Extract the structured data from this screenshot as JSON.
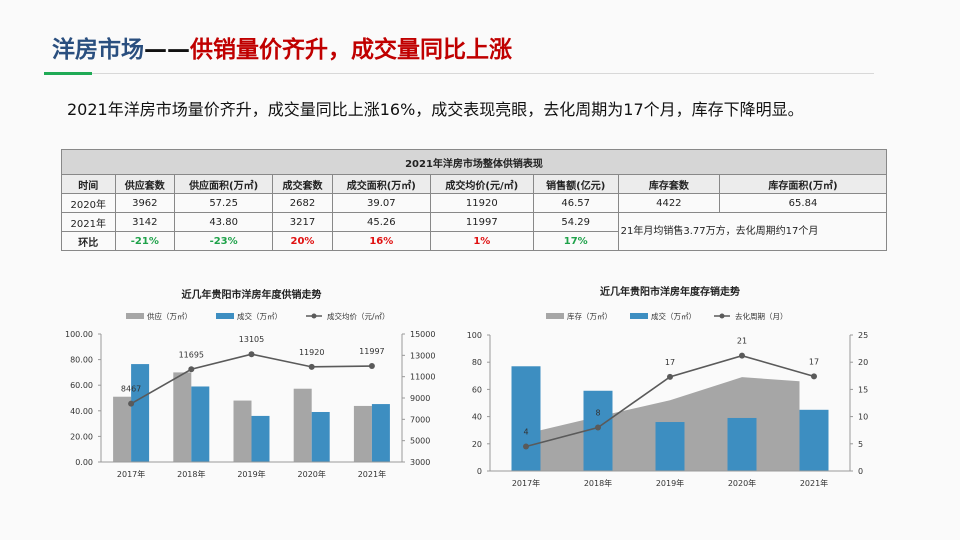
{
  "header": {
    "title_a": "洋房市场",
    "title_dash": "——",
    "title_b": "供销量价齐升，成交量同比上涨"
  },
  "summary": "2021年洋房市场量价齐升，成交量同比上涨16%，成交表现亮眼，去化周期为17个月，库存下降明显。",
  "table": {
    "caption": "2021年洋房市场整体供销表现",
    "headers": [
      "时间",
      "供应套数",
      "供应面积(万㎡)",
      "成交套数",
      "成交面积(万㎡)",
      "成交均价(元/㎡)",
      "销售额(亿元)",
      "库存套数",
      "库存面积(万㎡)"
    ],
    "rows": [
      [
        "2020年",
        "3962",
        "57.25",
        "2682",
        "39.07",
        "11920",
        "46.57",
        "4422",
        "65.84"
      ],
      [
        "2021年",
        "3142",
        "43.80",
        "3217",
        "45.26",
        "11997",
        "54.29"
      ]
    ],
    "change": [
      "环比",
      "-21%",
      "-23%",
      "20%",
      "16%",
      "1%",
      "17%"
    ],
    "note": "21年月均销售3.77万方，去化周期约17个月"
  },
  "colors": {
    "gray": "#a6a6a6",
    "blue": "#3d8ec1",
    "line": "#5a5a5a",
    "title_blue": "#2a4f7f",
    "title_red": "#c00000",
    "up": "#e01010",
    "down": "#1fa24a"
  },
  "chart_data": [
    {
      "type": "bar+line",
      "title": "近几年贵阳市洋房年度供销走势",
      "categories": [
        "2017年",
        "2018年",
        "2019年",
        "2020年",
        "2021年"
      ],
      "series": [
        {
          "name": "供应（万㎡）",
          "type": "bar",
          "axis": "left",
          "values": [
            51,
            70,
            48,
            57.25,
            43.8
          ]
        },
        {
          "name": "成交（万㎡）",
          "type": "bar",
          "axis": "left",
          "values": [
            76.5,
            59,
            36,
            39.07,
            45.26
          ]
        },
        {
          "name": "成交均价（元/㎡）",
          "type": "line",
          "axis": "right",
          "values": [
            8467,
            11695,
            13105,
            11920,
            11997
          ],
          "labels": [
            "8467",
            "11695",
            "13105",
            "11920",
            "11997"
          ]
        }
      ],
      "ylim": [
        0,
        100
      ],
      "yticks": [
        "0.00",
        "20.00",
        "40.00",
        "60.00",
        "80.00",
        "100.00"
      ],
      "y2lim": [
        3000,
        15000
      ],
      "y2ticks": [
        "3000",
        "5000",
        "7000",
        "9000",
        "11000",
        "13000",
        "15000"
      ],
      "legend": "top"
    },
    {
      "type": "area+bar+line",
      "title": "近几年贵阳市洋房年度存销走势",
      "categories": [
        "2017年",
        "2018年",
        "2019年",
        "2020年",
        "2021年"
      ],
      "series": [
        {
          "name": "库存（万㎡）",
          "type": "area",
          "axis": "left",
          "values": [
            30,
            40,
            52,
            69,
            66
          ]
        },
        {
          "name": "成交（万㎡）",
          "type": "bar",
          "axis": "left",
          "values": [
            77,
            59,
            36,
            39,
            45
          ]
        },
        {
          "name": "去化周期（月）",
          "type": "line",
          "axis": "right",
          "values": [
            4.5,
            8,
            17.3,
            21.2,
            17.4
          ],
          "labels": [
            "4",
            "8",
            "17",
            "21",
            "17"
          ]
        }
      ],
      "ylim": [
        0,
        100
      ],
      "yticks": [
        "0",
        "20",
        "40",
        "60",
        "80",
        "100"
      ],
      "y2lim": [
        0,
        25
      ],
      "y2ticks": [
        "0",
        "5",
        "10",
        "15",
        "20",
        "25"
      ],
      "legend": "top"
    }
  ]
}
